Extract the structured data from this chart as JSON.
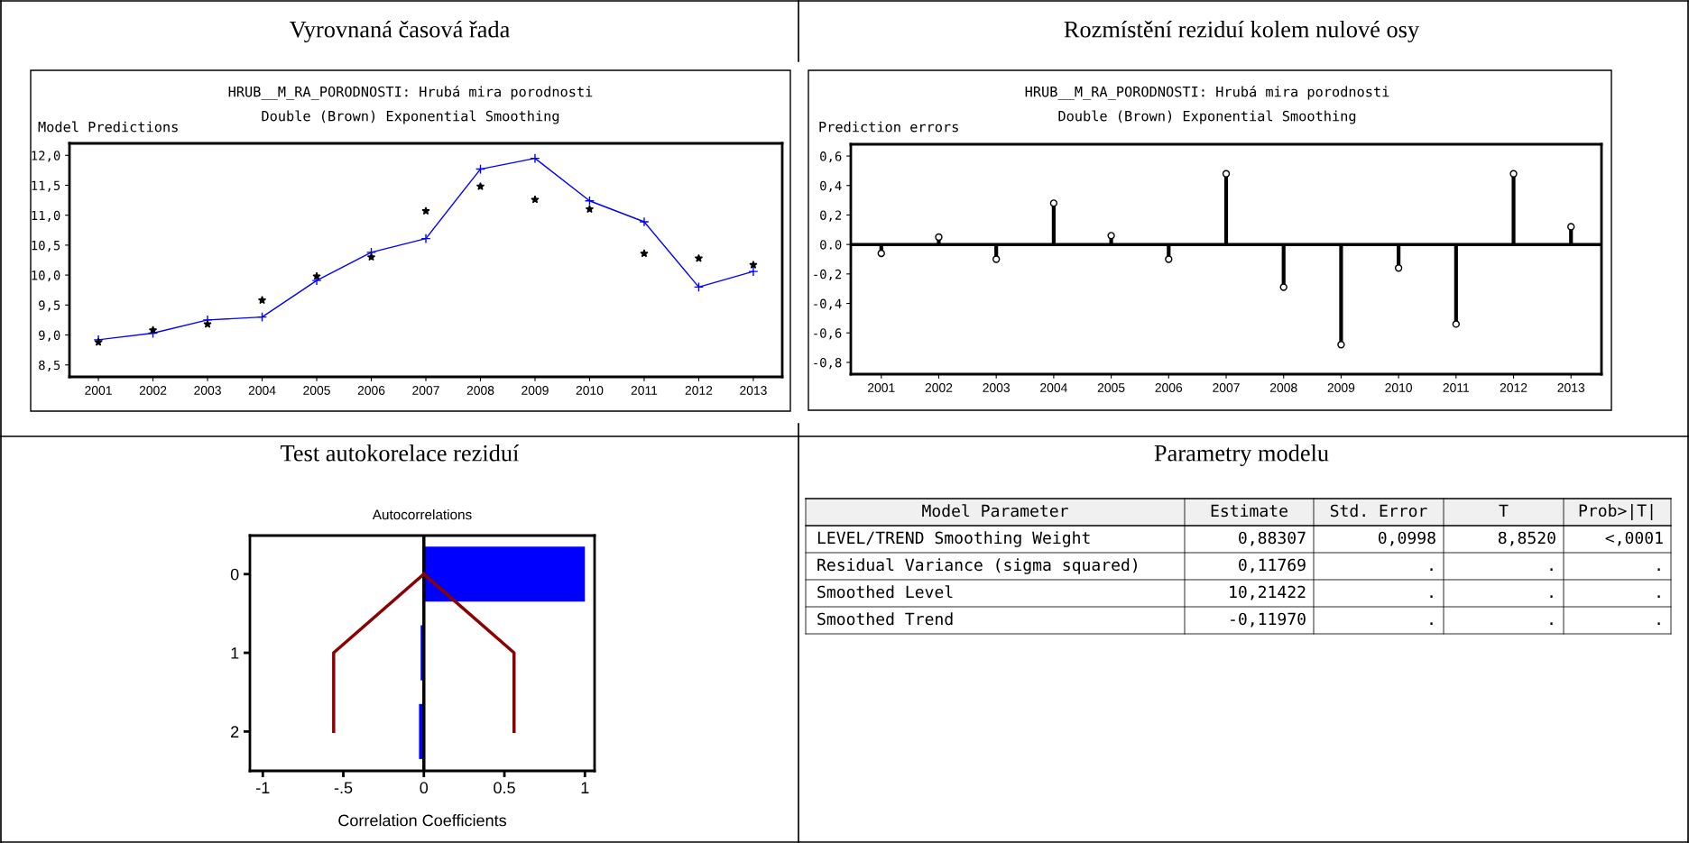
{
  "chart_data": [
    {
      "type": "line",
      "title": "Vyrovnaná časová řada",
      "subtitle": "HRUB__M_RA_PORODNOSTI: Hrubá mira porodnosti\nDouble (Brown) Exponential Smoothing",
      "ylabel": "Model Predictions",
      "categories": [
        "2001",
        "2002",
        "2003",
        "2004",
        "2005",
        "2006",
        "2007",
        "2008",
        "2009",
        "2010",
        "2011",
        "2012",
        "2013"
      ],
      "series": [
        {
          "type": "line",
          "color": "#0000ff",
          "marker": "cross",
          "line_style": "solid",
          "values": [
            8.92,
            9.03,
            9.25,
            9.3,
            9.91,
            10.38,
            10.61,
            11.77,
            11.95,
            11.24,
            10.89,
            9.8,
            10.06
          ]
        },
        {
          "type": "scatter",
          "color": "#000000",
          "marker": "star",
          "values": [
            8.88,
            9.08,
            9.18,
            9.58,
            9.98,
            10.3,
            11.07,
            11.48,
            11.26,
            11.1,
            10.36,
            10.28,
            10.17
          ]
        }
      ],
      "ylim": [
        8.3,
        12.2
      ],
      "yticks": [
        {
          "value": 8.5,
          "label": "8,5"
        },
        {
          "value": 9,
          "label": "9,0"
        },
        {
          "value": 9.5,
          "label": "9,5"
        },
        {
          "value": 10,
          "label": "10,0"
        },
        {
          "value": 10.5,
          "label": "10,5"
        },
        {
          "value": 11,
          "label": "11,0"
        },
        {
          "value": 11.5,
          "label": "11,5"
        },
        {
          "value": 12,
          "label": "12,0"
        }
      ],
      "grid": false,
      "legend": false
    },
    {
      "type": "lollipop",
      "title": "Rozmístění reziduí kolem nulové osy",
      "subtitle": "HRUB__M_RA_PORODNOSTI: Hrubá mira porodnosti\nDouble (Brown) Exponential Smoothing",
      "ylabel": "Prediction errors",
      "categories": [
        "2001",
        "2002",
        "2003",
        "2004",
        "2005",
        "2006",
        "2007",
        "2008",
        "2009",
        "2010",
        "2011",
        "2012",
        "2013"
      ],
      "series": [
        {
          "type": "lollipop",
          "color": "#000000",
          "marker": "circle",
          "values": [
            -0.06,
            0.05,
            -0.1,
            0.28,
            0.06,
            -0.1,
            0.48,
            -0.29,
            -0.68,
            -0.16,
            -0.54,
            0.48,
            0.12
          ]
        }
      ],
      "ylim": [
        -0.88,
        0.68
      ],
      "yticks": [
        {
          "value": -0.8,
          "label": "-0,8"
        },
        {
          "value": -0.6,
          "label": "-0,6"
        },
        {
          "value": -0.4,
          "label": "-0,4"
        },
        {
          "value": -0.2,
          "label": "-0,2"
        },
        {
          "value": 0,
          "label": "0.0"
        },
        {
          "value": 0.2,
          "label": "0,2"
        },
        {
          "value": 0.4,
          "label": "0,4"
        },
        {
          "value": 0.6,
          "label": "0,6"
        }
      ],
      "ref_lines": [
        {
          "axis": "y",
          "value": 0,
          "color": "#000000"
        }
      ],
      "grid": false,
      "legend": false
    },
    {
      "type": "bar",
      "orientation": "horizontal",
      "title": "Test autokorelace reziduí",
      "subtitle": "Autocorrelations",
      "xlabel": "Correlation Coefficients",
      "categories": [
        "0",
        "1",
        "2"
      ],
      "series": [
        {
          "type": "bar",
          "color": "#0000ff",
          "values": [
            1.0,
            -0.02,
            -0.03
          ]
        },
        {
          "type": "line",
          "color": "#8b0000",
          "marker": "none",
          "line_style": "solid",
          "values": [
            0,
            -0.56,
            -0.56
          ]
        },
        {
          "type": "line",
          "color": "#8b0000",
          "marker": "none",
          "line_style": "solid",
          "values": [
            0,
            0.56,
            0.56
          ]
        }
      ],
      "xlim": [
        -1.08,
        1.06
      ],
      "xticks": [
        -1,
        {
          "value": -0.5,
          "label": "-.5"
        },
        0,
        0.5,
        1
      ],
      "ref_lines": [
        {
          "axis": "x",
          "value": 0,
          "color": "#000000"
        }
      ],
      "grid": false,
      "legend": false
    },
    {
      "type": "other",
      "title": "Parametry modelu",
      "categories": [
        "Model Parameter",
        "Estimate",
        "Std. Error",
        "T",
        "Prob>|T|"
      ],
      "y_categories": [
        "LEVEL/TREND Smoothing Weight",
        "Residual Variance (sigma squared)",
        "Smoothed Level",
        "Smoothed Trend"
      ],
      "cell_labels": [
        [
          "0,88307",
          "0,0998",
          "8,8520",
          "<,0001"
        ],
        [
          "0,11769",
          ".",
          ".",
          "."
        ],
        [
          "10,21422",
          ".",
          ".",
          "."
        ],
        [
          "-0,11970",
          ".",
          ".",
          "."
        ]
      ]
    }
  ]
}
